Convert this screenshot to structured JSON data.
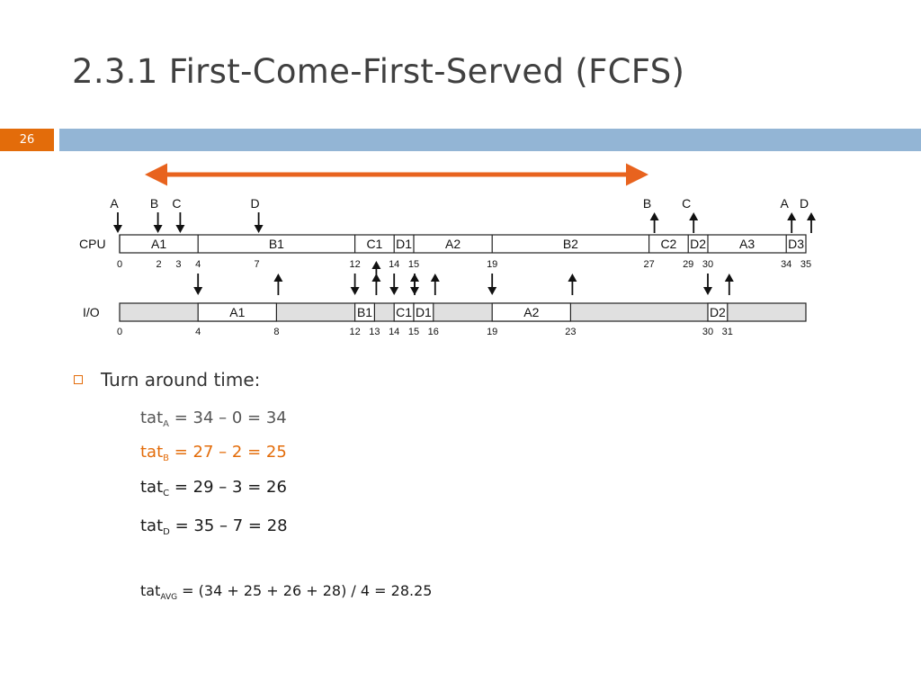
{
  "slide": {
    "title": "2.3.1 First-Come-First-Served (FCFS)",
    "page_number": "26",
    "accent_color": "#e36c0a",
    "rule_color": "#93b5d5"
  },
  "diagram": {
    "range_arrow_color": "#e8631e",
    "cpu": {
      "label": "CPU",
      "segments": [
        {
          "label": "A1",
          "start": 0,
          "end": 4
        },
        {
          "label": "B1",
          "start": 4,
          "end": 12
        },
        {
          "label": "C1",
          "start": 12,
          "end": 14
        },
        {
          "label": "D1",
          "start": 14,
          "end": 15
        },
        {
          "label": "A2",
          "start": 15,
          "end": 19
        },
        {
          "label": "B2",
          "start": 19,
          "end": 27
        },
        {
          "label": "C2",
          "start": 27,
          "end": 29
        },
        {
          "label": "D2",
          "start": 29,
          "end": 30
        },
        {
          "label": "A3",
          "start": 30,
          "end": 34
        },
        {
          "label": "D3",
          "start": 34,
          "end": 35
        }
      ],
      "ticks": [
        "0",
        "2",
        "3",
        "4",
        "7",
        "12",
        "14",
        "15",
        "19",
        "27",
        "29",
        "30",
        "34",
        "35"
      ],
      "arrivals": [
        {
          "label": "A",
          "time": 0
        },
        {
          "label": "B",
          "time": 2
        },
        {
          "label": "C",
          "time": 3
        },
        {
          "label": "D",
          "time": 7
        }
      ],
      "completions": [
        {
          "label": "B",
          "time": 27
        },
        {
          "label": "C",
          "time": 29
        },
        {
          "label": "A",
          "time": 34
        },
        {
          "label": "D",
          "time": 35
        }
      ]
    },
    "io": {
      "label": "I/O",
      "segments": [
        {
          "label": "A1",
          "start": 4,
          "end": 8
        },
        {
          "label": "B1",
          "start": 12,
          "end": 13
        },
        {
          "label": "C1",
          "start": 14,
          "end": 15
        },
        {
          "label": "D1",
          "start": 15,
          "end": 16
        },
        {
          "label": "A2",
          "start": 19,
          "end": 23
        },
        {
          "label": "D2",
          "start": 30,
          "end": 31
        }
      ],
      "ticks": [
        "0",
        "4",
        "8",
        "12",
        "13",
        "14",
        "15",
        "16",
        "19",
        "23",
        "30",
        "31"
      ],
      "request_times": [
        4,
        12,
        14,
        15,
        19,
        30
      ],
      "done_times": [
        8,
        13,
        15,
        16,
        23,
        31
      ]
    }
  },
  "content": {
    "bullet": "Turn around time:",
    "formulas": [
      {
        "base": "tat",
        "sub": "A",
        "expr": " = 34 – 0 = 34"
      },
      {
        "base": "tat",
        "sub": "B",
        "expr": " = 27 – 2 = 25"
      },
      {
        "base": "tat",
        "sub": "C",
        "expr": " = 29 – 3 = 26"
      },
      {
        "base": "tat",
        "sub": "D",
        "expr": " = 35 – 7 = 28"
      },
      {
        "base": "tat",
        "sub": "AVG",
        "expr": " = (34 + 25 + 26 + 28) / 4 = 28.25"
      }
    ]
  }
}
